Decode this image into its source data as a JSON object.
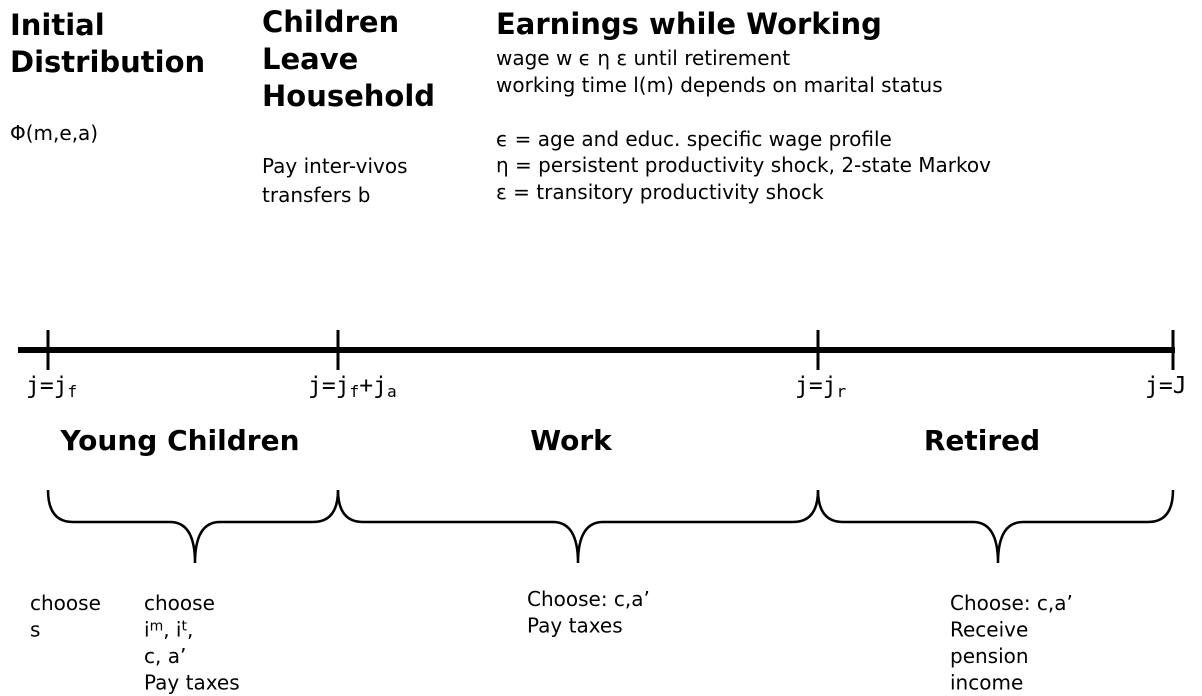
{
  "header": {
    "initial": {
      "title": [
        "Initial",
        "Distribution"
      ],
      "formula": "Φ(m,e,a)"
    },
    "children": {
      "title": [
        "Children",
        "Leave",
        "Household"
      ],
      "text": [
        "Pay inter-vivos",
        "transfers b"
      ]
    },
    "earnings": {
      "title": "Earnings while Working",
      "lines": [
        "wage w ϵ η ε until retirement",
        "working time l(m) depends on marital status"
      ],
      "definitions": [
        "ϵ = age and educ. specific wage profile",
        "η = persistent productivity shock, 2-state Markov",
        "ε = transitory productivity shock"
      ]
    }
  },
  "timeline": {
    "ticks": [
      [
        "j=j",
        "f"
      ],
      [
        "j=j",
        "f",
        "+j",
        "a"
      ],
      [
        "j=j",
        "r"
      ],
      [
        "j=J"
      ]
    ],
    "phases": [
      "Young Children",
      "Work",
      "Retired"
    ]
  },
  "notes": {
    "young_first": [
      [
        "choose"
      ],
      [
        "s"
      ]
    ],
    "young_second": [
      [
        "choose"
      ],
      [
        "i",
        "m",
        ", i",
        "t",
        ","
      ],
      [
        "c, a’"
      ],
      [
        "Pay taxes"
      ]
    ],
    "work": [
      [
        "Choose: c,a’"
      ],
      [
        "Pay taxes"
      ]
    ],
    "retired": [
      [
        "Choose: c,a’"
      ],
      [
        "Receive"
      ],
      [
        "pension"
      ],
      [
        "income"
      ]
    ]
  }
}
